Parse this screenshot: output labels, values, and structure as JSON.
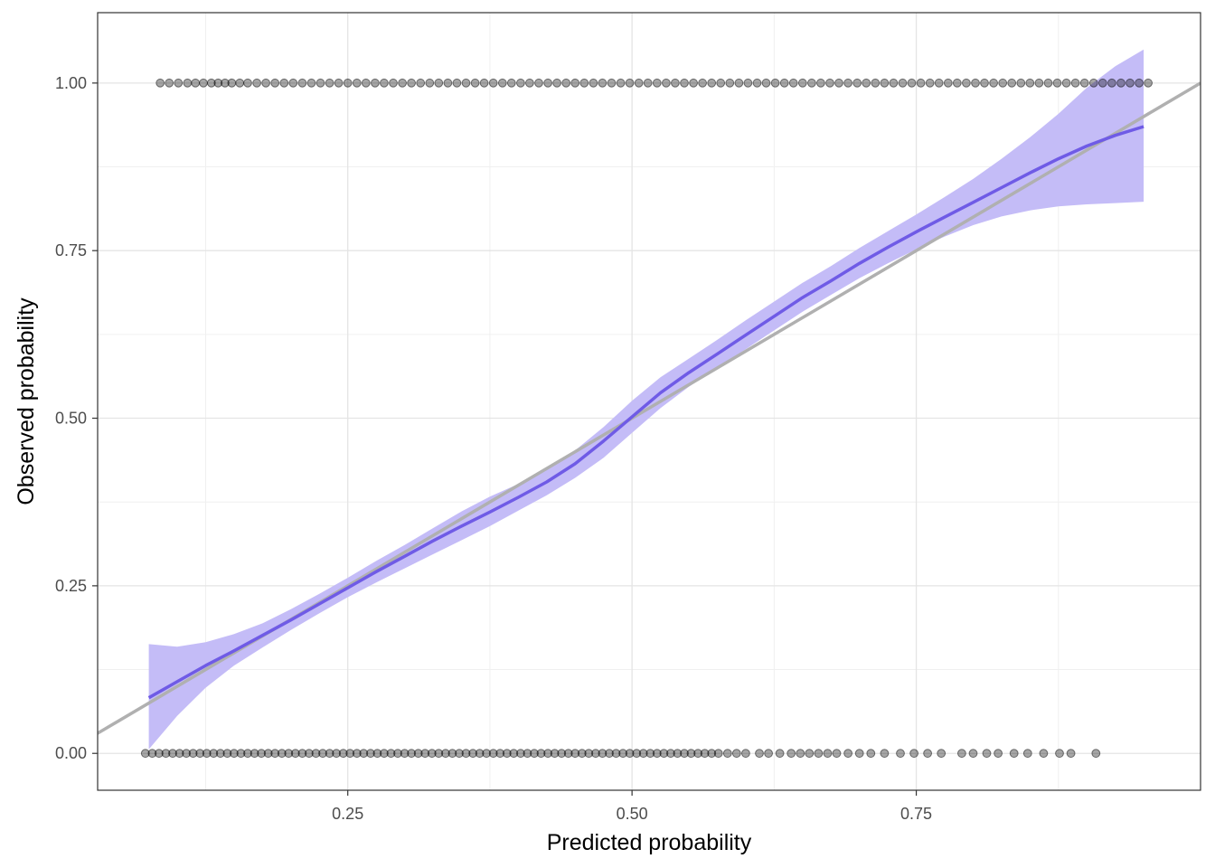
{
  "chart_data": {
    "type": "scatter",
    "title": "",
    "xlabel": "Predicted probability",
    "ylabel": "Observed probability",
    "xlim": [
      0.03,
      1.0
    ],
    "ylim": [
      -0.055,
      1.105
    ],
    "x_ticks": [
      0.25,
      0.5,
      0.75
    ],
    "x_tick_labels": [
      "0.25",
      "0.50",
      "0.75"
    ],
    "y_ticks": [
      0.0,
      0.25,
      0.5,
      0.75,
      1.0
    ],
    "y_tick_labels": [
      "0.00",
      "0.25",
      "0.50",
      "0.75",
      "1.00"
    ],
    "x_minor_ticks": [
      0.125,
      0.375,
      0.625,
      0.875
    ],
    "y_minor_ticks": [
      0.125,
      0.375,
      0.625,
      0.875
    ],
    "grid": true,
    "theme": "bw",
    "reference_line": {
      "description": "identity y = x",
      "points": [
        [
          0.0,
          0.0
        ],
        [
          1.0,
          1.0
        ]
      ],
      "color": "#b0b0b0"
    },
    "smooth_curve": {
      "color": "#6f5be6",
      "band_color": "#c4bcf7",
      "x": [
        0.075,
        0.1,
        0.125,
        0.15,
        0.175,
        0.2,
        0.225,
        0.25,
        0.275,
        0.3,
        0.325,
        0.35,
        0.375,
        0.4,
        0.425,
        0.45,
        0.475,
        0.5,
        0.525,
        0.55,
        0.575,
        0.6,
        0.625,
        0.65,
        0.675,
        0.7,
        0.725,
        0.75,
        0.775,
        0.8,
        0.825,
        0.85,
        0.875,
        0.9,
        0.925,
        0.95
      ],
      "y": [
        0.083,
        0.107,
        0.131,
        0.153,
        0.176,
        0.199,
        0.223,
        0.247,
        0.271,
        0.294,
        0.317,
        0.339,
        0.36,
        0.382,
        0.405,
        0.432,
        0.466,
        0.502,
        0.538,
        0.568,
        0.596,
        0.624,
        0.652,
        0.68,
        0.705,
        0.731,
        0.755,
        0.778,
        0.8,
        0.822,
        0.844,
        0.866,
        0.887,
        0.906,
        0.922,
        0.935
      ],
      "lower": [
        0.006,
        0.056,
        0.098,
        0.131,
        0.158,
        0.184,
        0.209,
        0.233,
        0.255,
        0.276,
        0.297,
        0.318,
        0.339,
        0.362,
        0.385,
        0.411,
        0.441,
        0.478,
        0.515,
        0.547,
        0.575,
        0.603,
        0.631,
        0.659,
        0.684,
        0.709,
        0.731,
        0.752,
        0.771,
        0.788,
        0.801,
        0.81,
        0.816,
        0.819,
        0.821,
        0.823
      ],
      "upper": [
        0.163,
        0.159,
        0.166,
        0.178,
        0.194,
        0.215,
        0.238,
        0.262,
        0.287,
        0.311,
        0.336,
        0.361,
        0.383,
        0.402,
        0.425,
        0.452,
        0.487,
        0.526,
        0.561,
        0.589,
        0.617,
        0.646,
        0.674,
        0.702,
        0.727,
        0.754,
        0.779,
        0.804,
        0.83,
        0.857,
        0.887,
        0.919,
        0.954,
        0.993,
        1.025,
        1.05
      ]
    },
    "points": {
      "color": "#000000",
      "opacity": 0.35,
      "observed_1_x": [
        0.085,
        0.093,
        0.101,
        0.109,
        0.116,
        0.123,
        0.13,
        0.136,
        0.142,
        0.148,
        0.155,
        0.162,
        0.17,
        0.178,
        0.186,
        0.194,
        0.202,
        0.21,
        0.218,
        0.226,
        0.234,
        0.242,
        0.25,
        0.258,
        0.266,
        0.274,
        0.282,
        0.29,
        0.298,
        0.306,
        0.314,
        0.322,
        0.33,
        0.338,
        0.346,
        0.354,
        0.362,
        0.37,
        0.378,
        0.386,
        0.394,
        0.402,
        0.41,
        0.418,
        0.426,
        0.434,
        0.442,
        0.45,
        0.458,
        0.466,
        0.474,
        0.482,
        0.49,
        0.498,
        0.506,
        0.514,
        0.522,
        0.53,
        0.538,
        0.546,
        0.554,
        0.562,
        0.57,
        0.578,
        0.586,
        0.594,
        0.602,
        0.61,
        0.618,
        0.626,
        0.634,
        0.642,
        0.65,
        0.658,
        0.666,
        0.674,
        0.682,
        0.69,
        0.698,
        0.706,
        0.714,
        0.722,
        0.73,
        0.738,
        0.746,
        0.754,
        0.762,
        0.77,
        0.778,
        0.786,
        0.794,
        0.802,
        0.81,
        0.818,
        0.826,
        0.834,
        0.842,
        0.85,
        0.858,
        0.866,
        0.874,
        0.882,
        0.89,
        0.898,
        0.906,
        0.914,
        0.922,
        0.93,
        0.938,
        0.946,
        0.954
      ],
      "observed_0_x": [
        0.072,
        0.078,
        0.084,
        0.09,
        0.096,
        0.102,
        0.108,
        0.114,
        0.12,
        0.126,
        0.132,
        0.138,
        0.144,
        0.15,
        0.156,
        0.162,
        0.168,
        0.174,
        0.18,
        0.186,
        0.192,
        0.198,
        0.204,
        0.21,
        0.216,
        0.222,
        0.228,
        0.234,
        0.24,
        0.246,
        0.252,
        0.258,
        0.264,
        0.27,
        0.276,
        0.282,
        0.288,
        0.294,
        0.3,
        0.306,
        0.312,
        0.318,
        0.324,
        0.33,
        0.336,
        0.342,
        0.348,
        0.354,
        0.36,
        0.366,
        0.372,
        0.378,
        0.384,
        0.39,
        0.396,
        0.402,
        0.408,
        0.414,
        0.42,
        0.426,
        0.432,
        0.438,
        0.444,
        0.45,
        0.456,
        0.462,
        0.468,
        0.474,
        0.48,
        0.486,
        0.492,
        0.498,
        0.504,
        0.51,
        0.516,
        0.522,
        0.528,
        0.534,
        0.54,
        0.546,
        0.552,
        0.558,
        0.564,
        0.57,
        0.576,
        0.584,
        0.592,
        0.6,
        0.612,
        0.62,
        0.63,
        0.64,
        0.648,
        0.656,
        0.664,
        0.672,
        0.68,
        0.69,
        0.7,
        0.71,
        0.722,
        0.736,
        0.748,
        0.76,
        0.772,
        0.79,
        0.8,
        0.812,
        0.822,
        0.836,
        0.848,
        0.862,
        0.876,
        0.886,
        0.908
      ]
    }
  }
}
